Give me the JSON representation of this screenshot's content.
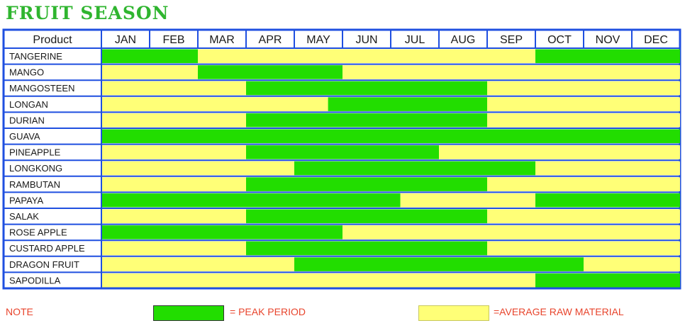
{
  "title": "FRUIT SEASON",
  "header_product": "Product",
  "months": [
    "JAN",
    "FEB",
    "MAR",
    "APR",
    "MAY",
    "JUN",
    "JUL",
    "AUG",
    "SEP",
    "OCT",
    "NOV",
    "DEC"
  ],
  "colors": {
    "peak": "#22dd00",
    "average": "#ffff77",
    "border": "#1f4fe0",
    "title": "#2fb52f",
    "note": "#e8442c"
  },
  "legend": {
    "note": "NOTE",
    "peak_label": "= PEAK PERIOD",
    "average_label": "=AVERAGE RAW MATERIAL"
  },
  "chart_data": {
    "type": "table",
    "title": "FRUIT SEASON",
    "x": [
      "JAN",
      "FEB",
      "MAR",
      "APR",
      "MAY",
      "JUN",
      "JUL",
      "AUG",
      "SEP",
      "OCT",
      "NOV",
      "DEC"
    ],
    "unit": "month (start month index 0 = JAN; end exclusive, 12 = end of DEC)",
    "rows": [
      {
        "name": "TANGERINE",
        "segments": [
          {
            "s": 0,
            "e": 2,
            "k": "peak"
          },
          {
            "s": 2,
            "e": 9,
            "k": "average"
          },
          {
            "s": 9,
            "e": 12,
            "k": "peak"
          }
        ]
      },
      {
        "name": "MANGO",
        "segments": [
          {
            "s": 0,
            "e": 2,
            "k": "average"
          },
          {
            "s": 2,
            "e": 5,
            "k": "peak"
          },
          {
            "s": 5,
            "e": 12,
            "k": "average"
          }
        ]
      },
      {
        "name": "MANGOSTEEN",
        "segments": [
          {
            "s": 0,
            "e": 3,
            "k": "average"
          },
          {
            "s": 3,
            "e": 8,
            "k": "peak"
          },
          {
            "s": 8,
            "e": 12,
            "k": "average"
          }
        ]
      },
      {
        "name": "LONGAN",
        "segments": [
          {
            "s": 0,
            "e": 4.7,
            "k": "average"
          },
          {
            "s": 4.7,
            "e": 8,
            "k": "peak"
          },
          {
            "s": 8,
            "e": 12,
            "k": "average"
          }
        ]
      },
      {
        "name": "DURIAN",
        "segments": [
          {
            "s": 0,
            "e": 3,
            "k": "average"
          },
          {
            "s": 3,
            "e": 8,
            "k": "peak"
          },
          {
            "s": 8,
            "e": 12,
            "k": "average"
          }
        ]
      },
      {
        "name": "GUAVA",
        "segments": [
          {
            "s": 0,
            "e": 12,
            "k": "peak"
          }
        ]
      },
      {
        "name": "PINEAPPLE",
        "segments": [
          {
            "s": 0,
            "e": 3,
            "k": "average"
          },
          {
            "s": 3,
            "e": 7,
            "k": "peak"
          },
          {
            "s": 7,
            "e": 12,
            "k": "average"
          }
        ]
      },
      {
        "name": "LONGKONG",
        "segments": [
          {
            "s": 0,
            "e": 4,
            "k": "average"
          },
          {
            "s": 4,
            "e": 9,
            "k": "peak"
          },
          {
            "s": 9,
            "e": 12,
            "k": "average"
          }
        ]
      },
      {
        "name": "RAMBUTAN",
        "segments": [
          {
            "s": 0,
            "e": 3,
            "k": "average"
          },
          {
            "s": 3,
            "e": 8,
            "k": "peak"
          },
          {
            "s": 8,
            "e": 12,
            "k": "average"
          }
        ]
      },
      {
        "name": "PAPAYA",
        "segments": [
          {
            "s": 0,
            "e": 6.2,
            "k": "peak"
          },
          {
            "s": 6.2,
            "e": 9,
            "k": "average"
          },
          {
            "s": 9,
            "e": 12,
            "k": "peak"
          }
        ]
      },
      {
        "name": "SALAK",
        "segments": [
          {
            "s": 0,
            "e": 3,
            "k": "average"
          },
          {
            "s": 3,
            "e": 8,
            "k": "peak"
          },
          {
            "s": 8,
            "e": 12,
            "k": "average"
          }
        ]
      },
      {
        "name": "ROSE APPLE",
        "segments": [
          {
            "s": 0,
            "e": 5,
            "k": "peak"
          },
          {
            "s": 5,
            "e": 12,
            "k": "average"
          }
        ]
      },
      {
        "name": "CUSTARD APPLE",
        "segments": [
          {
            "s": 0,
            "e": 3,
            "k": "average"
          },
          {
            "s": 3,
            "e": 8,
            "k": "peak"
          },
          {
            "s": 8,
            "e": 12,
            "k": "average"
          }
        ]
      },
      {
        "name": "DRAGON FRUIT",
        "segments": [
          {
            "s": 0,
            "e": 4,
            "k": "average"
          },
          {
            "s": 4,
            "e": 10,
            "k": "peak"
          },
          {
            "s": 10,
            "e": 12,
            "k": "average"
          }
        ]
      },
      {
        "name": "SAPODILLA",
        "segments": [
          {
            "s": 0,
            "e": 9,
            "k": "average"
          },
          {
            "s": 9,
            "e": 12,
            "k": "peak"
          }
        ]
      }
    ]
  }
}
